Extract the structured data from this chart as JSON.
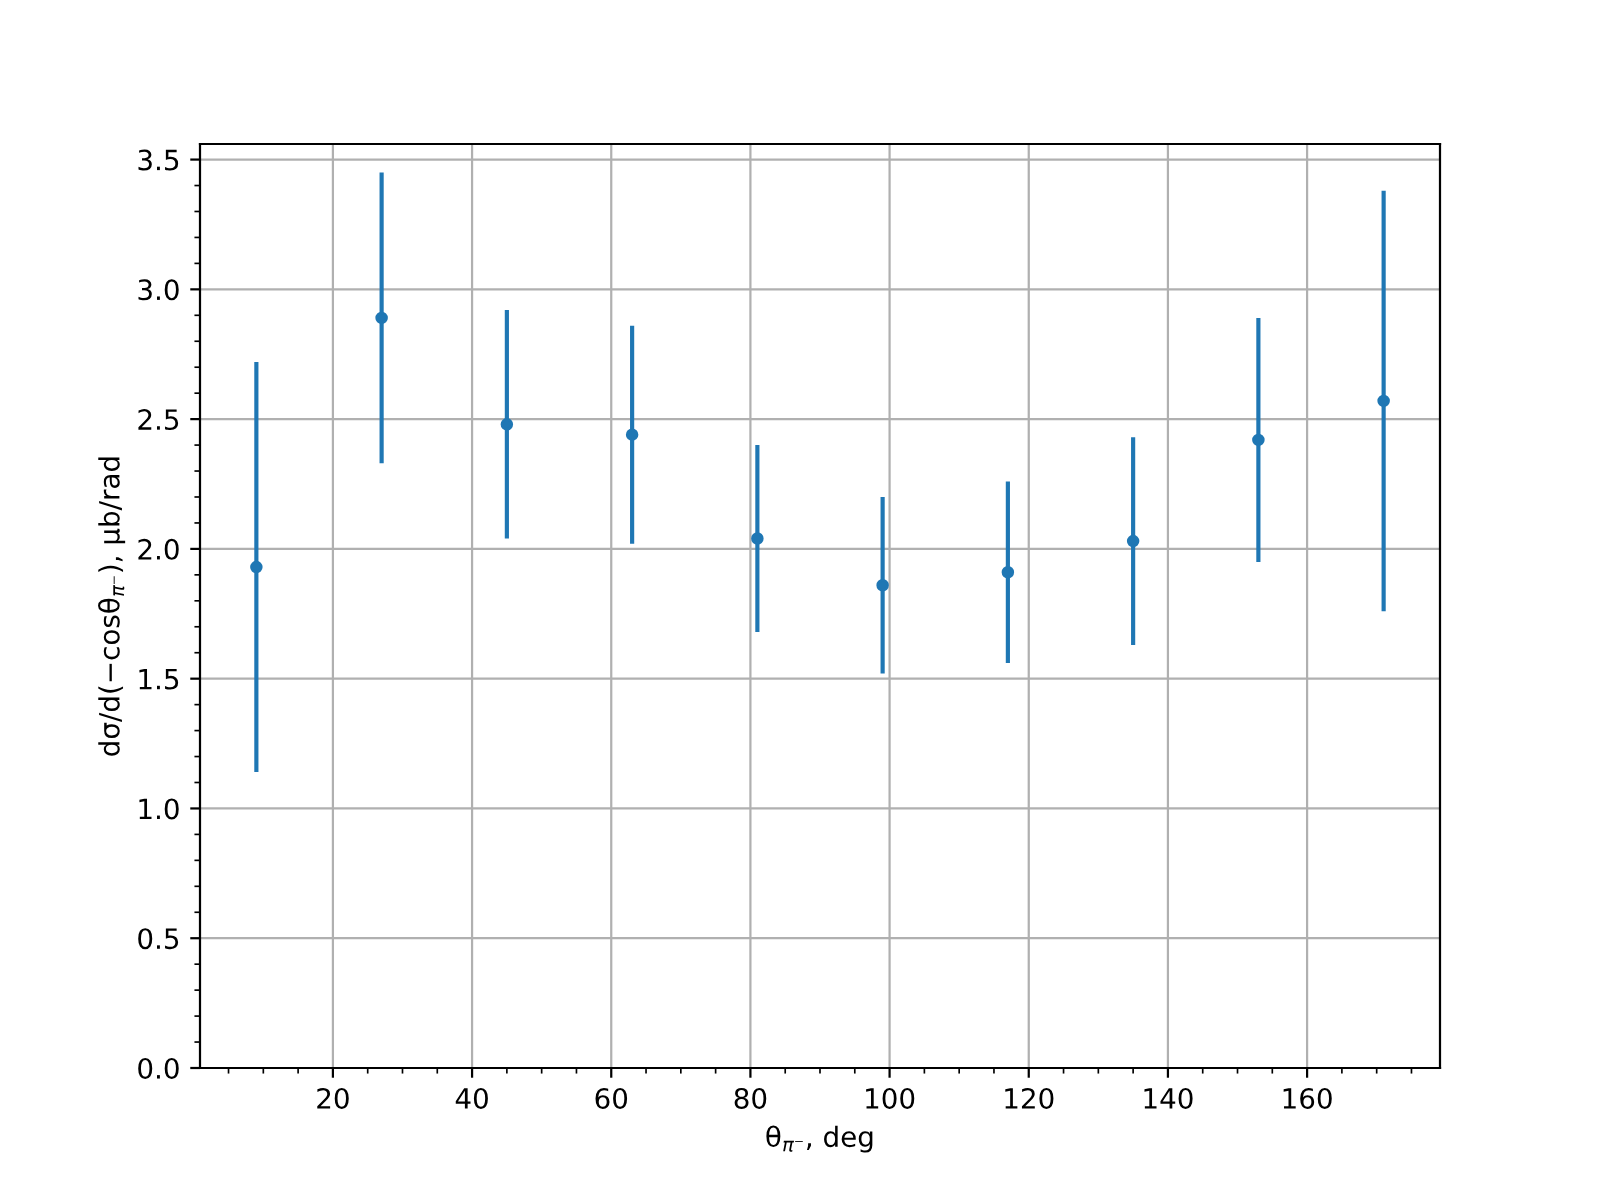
{
  "chart_data": {
    "type": "scatter",
    "xlabel": "θ$_{π⁻}$, deg",
    "ylabel": "dσ/d(−cosθ$_{π⁻}$), μb/rad",
    "x": [
      9,
      27,
      45,
      63,
      81,
      99,
      117,
      135,
      153,
      171
    ],
    "series": [
      {
        "color": "#1f77b4",
        "values": [
          1.93,
          2.89,
          2.48,
          2.44,
          2.04,
          1.86,
          1.91,
          2.03,
          2.42,
          2.57
        ],
        "errors": [
          0.79,
          0.56,
          0.44,
          0.42,
          0.36,
          0.34,
          0.35,
          0.4,
          0.47,
          0.81
        ]
      }
    ],
    "marker": "circle",
    "xlim": [
      0.9,
      179.1
    ],
    "xticks": [
      20,
      40,
      60,
      80,
      100,
      120,
      140,
      160
    ],
    "ylim": [
      0,
      3.56
    ],
    "yticks": [
      {
        "value": 0,
        "label": "0.0"
      },
      0.5,
      {
        "value": 1,
        "label": "1.0"
      },
      1.5,
      {
        "value": 2,
        "label": "2.0"
      },
      2.5,
      {
        "value": 3,
        "label": "3.0"
      },
      3.5
    ],
    "grid": true
  }
}
